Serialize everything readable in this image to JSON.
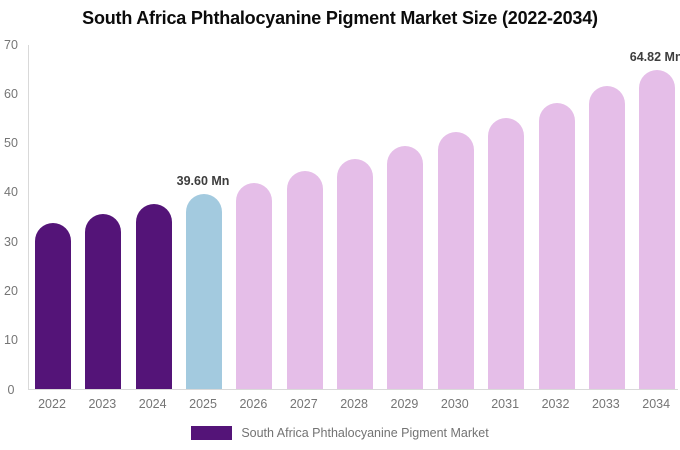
{
  "title": "South Africa Phthalocyanine Pigment Market Size (2022-2034)",
  "chart_data": {
    "type": "bar",
    "title": "South Africa Phthalocyanine Pigment Market Size (2022-2034)",
    "categories": [
      "2022",
      "2023",
      "2024",
      "2025",
      "2026",
      "2027",
      "2028",
      "2029",
      "2030",
      "2031",
      "2032",
      "2033",
      "2034"
    ],
    "values": [
      33.6,
      35.5,
      37.5,
      39.6,
      41.8,
      44.2,
      46.7,
      49.3,
      52.1,
      55.0,
      58.1,
      61.4,
      64.82
    ],
    "unit": "Mn",
    "xlabel": "",
    "ylabel": "",
    "ylim": [
      0,
      70
    ],
    "yticks": [
      0,
      10,
      20,
      30,
      40,
      50,
      60,
      70
    ],
    "grid": false,
    "legend_position": "bottom",
    "bar_colors": [
      "#541478",
      "#541478",
      "#541478",
      "#A3CADF",
      "#E5BEE8",
      "#E5BEE8",
      "#E5BEE8",
      "#E5BEE8",
      "#E5BEE8",
      "#E5BEE8",
      "#E5BEE8",
      "#E5BEE8",
      "#E5BEE8"
    ],
    "annotations": [
      {
        "category": "2025",
        "text": "39.60 Mn"
      },
      {
        "category": "2034",
        "text": "64.82 Mn"
      }
    ],
    "legend": [
      {
        "label": "South Africa Phthalocyanine Pigment Market",
        "color": "#541478"
      }
    ]
  },
  "colors": {
    "historical_bar": "#541478",
    "highlight_bar": "#A3CADF",
    "forecast_bar": "#E5BEE8",
    "axis_line": "#d9d9d9",
    "tick_label": "#757575",
    "annotation_text": "#3d3d3d",
    "title_text": "#0b0b0b",
    "legend_text": "#737373"
  }
}
